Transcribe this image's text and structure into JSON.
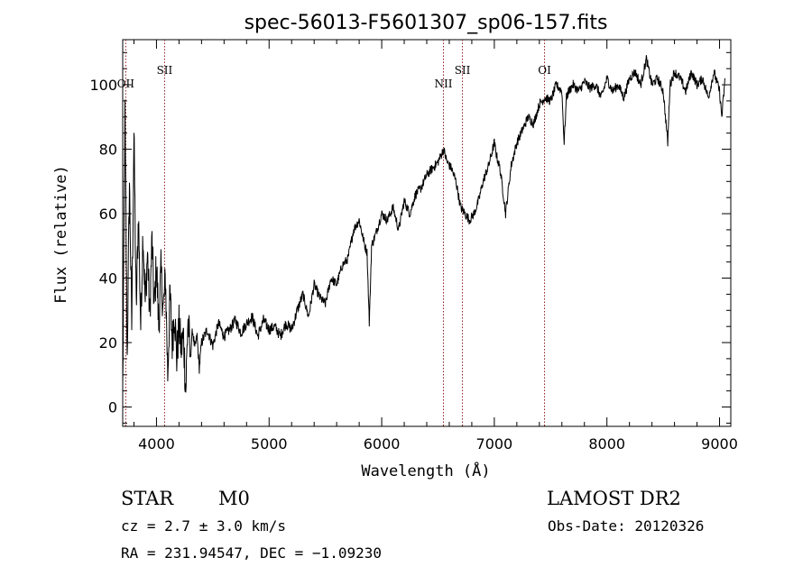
{
  "chart_data": {
    "type": "line",
    "title": "spec-56013-F5601307_sp06-157.fits",
    "xlabel": "Wavelength (Å)",
    "ylabel": "Flux (relative)",
    "xlim": [
      3700,
      9100
    ],
    "ylim": [
      -6,
      114
    ],
    "x_ticks": [
      4000,
      5000,
      6000,
      7000,
      8000,
      9000
    ],
    "y_ticks": [
      0,
      20,
      40,
      60,
      80,
      100
    ],
    "grid": false,
    "legend": "none",
    "line_color": "#000000",
    "marker_color": "#8b1a1a",
    "spectral_lines": [
      {
        "name": "OII",
        "wavelength": 3727
      },
      {
        "name": "SII",
        "wavelength": 4072
      },
      {
        "name": "NII",
        "wavelength": 6548
      },
      {
        "name": "SII",
        "wavelength": 6717
      },
      {
        "name": "OI",
        "wavelength": 7446
      }
    ],
    "series": [
      {
        "x": [
          3700,
          3720,
          3740,
          3760,
          3780,
          3800,
          3820,
          3840,
          3860,
          3880,
          3900,
          3920,
          3940,
          3960,
          3980,
          4000,
          4020,
          4040,
          4060,
          4080,
          4100,
          4120,
          4140,
          4160,
          4180,
          4200,
          4220,
          4240,
          4260,
          4280,
          4300,
          4320,
          4340,
          4360,
          4380,
          4400,
          4450,
          4500,
          4550,
          4600,
          4650,
          4700,
          4750,
          4800,
          4850,
          4900,
          4950,
          5000,
          5050,
          5100,
          5150,
          5200,
          5250,
          5300,
          5350,
          5400,
          5450,
          5500,
          5550,
          5600,
          5650,
          5700,
          5750,
          5800,
          5850,
          5870,
          5890,
          5910,
          5950,
          6000,
          6050,
          6100,
          6150,
          6200,
          6250,
          6300,
          6350,
          6400,
          6450,
          6500,
          6550,
          6580,
          6620,
          6660,
          6700,
          6740,
          6780,
          6820,
          6860,
          6900,
          6950,
          7000,
          7020,
          7050,
          7080,
          7100,
          7150,
          7200,
          7250,
          7300,
          7350,
          7400,
          7450,
          7500,
          7550,
          7600,
          7620,
          7640,
          7660,
          7700,
          7750,
          7800,
          7850,
          7900,
          7950,
          8000,
          8050,
          8100,
          8150,
          8200,
          8250,
          8300,
          8350,
          8400,
          8450,
          8500,
          8540,
          8560,
          8600,
          8650,
          8700,
          8750,
          8800,
          8850,
          8900,
          8950,
          9000,
          9020,
          9050
        ],
        "y": [
          5,
          90,
          15,
          70,
          25,
          85,
          30,
          60,
          25,
          55,
          32,
          48,
          28,
          52,
          30,
          45,
          25,
          42,
          30,
          40,
          10,
          35,
          20,
          30,
          15,
          25,
          18,
          22,
          5,
          28,
          15,
          24,
          18,
          22,
          12,
          20,
          24,
          19,
          26,
          22,
          24,
          27,
          23,
          26,
          28,
          22,
          27,
          24,
          25,
          22,
          26,
          24,
          30,
          35,
          28,
          38,
          34,
          32,
          40,
          38,
          44,
          46,
          55,
          58,
          50,
          48,
          26,
          50,
          54,
          60,
          58,
          62,
          55,
          64,
          60,
          66,
          68,
          72,
          74,
          76,
          80,
          76,
          74,
          70,
          62,
          60,
          58,
          60,
          64,
          70,
          75,
          82,
          78,
          74,
          66,
          60,
          75,
          82,
          86,
          90,
          88,
          94,
          96,
          95,
          100,
          98,
          82,
          96,
          98,
          100,
          98,
          101,
          99,
          100,
          96,
          102,
          98,
          100,
          96,
          102,
          104,
          100,
          108,
          100,
          102,
          98,
          82,
          100,
          104,
          102,
          98,
          104,
          100,
          102,
          96,
          104,
          98,
          90,
          102
        ]
      }
    ]
  },
  "info": {
    "class_label": "STAR",
    "subclass": "M0",
    "survey": "LAMOST DR2",
    "cz": "cz = 2.7 ± 3.0 km/s",
    "obs_date": "Obs-Date: 20120326",
    "coords": "RA = 231.94547, DEC =  −1.09230"
  }
}
